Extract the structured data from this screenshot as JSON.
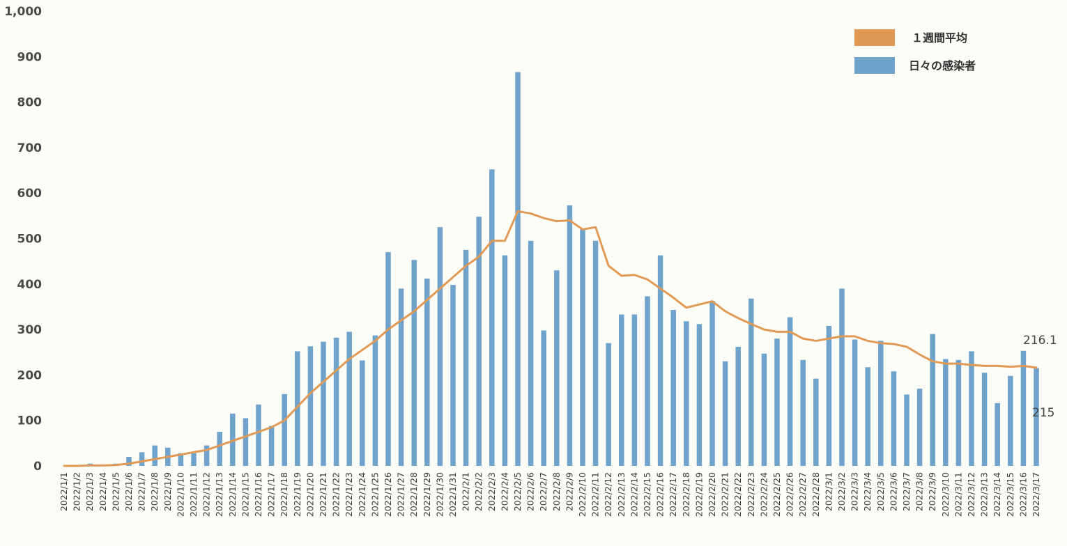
{
  "chart_data": {
    "type": "bar",
    "categories": [
      "2022/1/1",
      "2022/1/2",
      "2022/1/3",
      "2022/1/4",
      "2022/1/5",
      "2022/1/6",
      "2022/1/7",
      "2022/1/8",
      "2022/1/9",
      "2022/1/10",
      "2022/1/11",
      "2022/1/12",
      "2022/1/13",
      "2022/1/14",
      "2022/1/15",
      "2022/1/16",
      "2022/1/17",
      "2022/1/18",
      "2022/1/19",
      "2022/1/20",
      "2022/1/21",
      "2022/1/22",
      "2022/1/23",
      "2022/1/24",
      "2022/1/25",
      "2022/1/26",
      "2022/1/27",
      "2022/1/28",
      "2022/1/29",
      "2022/1/30",
      "2022/1/31",
      "2022/2/1",
      "2022/2/2",
      "2022/2/3",
      "2022/2/4",
      "2022/2/5",
      "2022/2/6",
      "2022/2/7",
      "2022/2/8",
      "2022/2/9",
      "2022/2/10",
      "2022/2/11",
      "2022/2/12",
      "2022/2/13",
      "2022/2/14",
      "2022/2/15",
      "2022/2/16",
      "2022/2/17",
      "2022/2/18",
      "2022/2/19",
      "2022/2/20",
      "2022/2/21",
      "2022/2/22",
      "2022/2/23",
      "2022/2/24",
      "2022/2/25",
      "2022/2/26",
      "2022/2/27",
      "2022/2/28",
      "2022/3/1",
      "2022/3/2",
      "2022/3/3",
      "2022/3/4",
      "2022/3/5",
      "2022/3/6",
      "2022/3/7",
      "2022/3/8",
      "2022/3/9",
      "2022/3/10",
      "2022/3/11",
      "2022/3/12",
      "2022/3/13",
      "2022/3/14",
      "2022/3/15",
      "2022/3/16",
      "2022/3/17"
    ],
    "series": [
      {
        "name": "日々の感染者",
        "kind": "bar",
        "color": "#6fa3cc",
        "values": [
          0,
          0,
          5,
          1,
          5,
          20,
          30,
          45,
          40,
          28,
          28,
          45,
          75,
          115,
          105,
          135,
          88,
          158,
          252,
          263,
          273,
          282,
          295,
          232,
          287,
          470,
          390,
          453,
          412,
          525,
          398,
          475,
          548,
          652,
          463,
          866,
          495,
          298,
          430,
          573,
          520,
          495,
          270,
          333,
          333,
          373,
          463,
          343,
          318,
          312,
          363,
          230,
          262,
          368,
          247,
          280,
          327,
          233,
          192,
          308,
          390,
          278,
          217,
          275,
          208,
          157,
          170,
          290,
          235,
          233,
          252,
          205,
          138,
          198,
          253,
          215
        ]
      },
      {
        "name": "１週間平均",
        "kind": "line",
        "color": "#e09a55",
        "values": [
          0,
          0,
          1,
          1,
          2,
          5,
          10,
          15,
          20,
          25,
          30,
          35,
          45,
          55,
          65,
          75,
          85,
          100,
          130,
          160,
          185,
          210,
          235,
          255,
          275,
          300,
          320,
          340,
          365,
          390,
          415,
          440,
          460,
          495,
          495,
          560,
          555,
          545,
          538,
          540,
          520,
          525,
          440,
          418,
          420,
          410,
          390,
          370,
          348,
          355,
          362,
          340,
          325,
          312,
          300,
          295,
          295,
          280,
          275,
          280,
          285,
          285,
          275,
          270,
          268,
          262,
          245,
          230,
          225,
          225,
          222,
          220,
          220,
          218,
          220,
          216.1
        ]
      }
    ],
    "ylim": [
      0,
      1000
    ],
    "yticks": [
      "0",
      "100",
      "200",
      "300",
      "400",
      "500",
      "600",
      "700",
      "800",
      "900",
      "1,000"
    ],
    "legend": {
      "position": "top-right"
    },
    "grid": false,
    "annotations": [
      {
        "text": "216.1",
        "target": "１週間平均",
        "index": 75
      },
      {
        "text": "215",
        "target": "日々の感染者",
        "index": 75
      }
    ]
  }
}
